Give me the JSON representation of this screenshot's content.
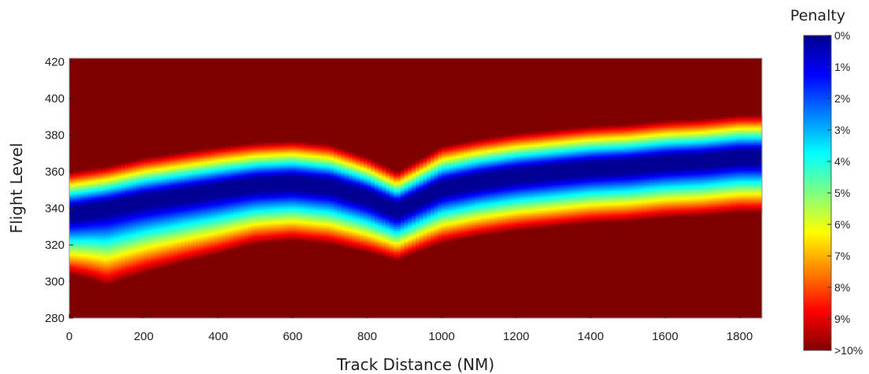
{
  "chart_data": {
    "type": "heatmap",
    "xlabel": "Track Distance (NM)",
    "ylabel": "Flight Level",
    "xlim": [
      0,
      1860
    ],
    "ylim": [
      280,
      422
    ],
    "x_ticks": [
      0,
      200,
      400,
      600,
      800,
      1000,
      1200,
      1400,
      1600,
      1800
    ],
    "y_ticks": [
      280,
      300,
      320,
      340,
      360,
      380,
      400,
      420
    ],
    "colorbar": {
      "title": "Penalty",
      "labels": [
        "0%",
        "1%",
        "2%",
        "3%",
        "4%",
        "5%",
        "6%",
        "7%",
        "8%",
        "9%",
        ">10%"
      ],
      "range": [
        0,
        10
      ],
      "unit": "%",
      "colormap": [
        "#00008f",
        "#0000ff",
        "#0080ff",
        "#00ffff",
        "#80ff80",
        "#ffff00",
        "#ff8000",
        "#ff0000",
        "#800000"
      ]
    },
    "optimal_band": {
      "track_distance": [
        0,
        100,
        200,
        300,
        400,
        500,
        600,
        700,
        800,
        880,
        950,
        1000,
        1100,
        1200,
        1300,
        1400,
        1500,
        1600,
        1700,
        1800,
        1860
      ],
      "optimal_flight_level": [
        337,
        340,
        344,
        347,
        350,
        353,
        354,
        352,
        346,
        339,
        346,
        351,
        355,
        358,
        360,
        362,
        363,
        365,
        366,
        368,
        368
      ],
      "lower_slope_pct_per_FL": [
        0.34,
        0.26,
        0.28,
        0.3,
        0.32,
        0.35,
        0.36,
        0.36,
        0.38,
        0.42,
        0.4,
        0.38,
        0.38,
        0.38,
        0.38,
        0.38,
        0.38,
        0.38,
        0.38,
        0.38,
        0.38
      ],
      "upper_slope_pct_per_FL": [
        0.52,
        0.52,
        0.5,
        0.5,
        0.5,
        0.52,
        0.52,
        0.52,
        0.55,
        0.58,
        0.55,
        0.52,
        0.52,
        0.52,
        0.52,
        0.52,
        0.52,
        0.52,
        0.52,
        0.52,
        0.52
      ]
    }
  }
}
